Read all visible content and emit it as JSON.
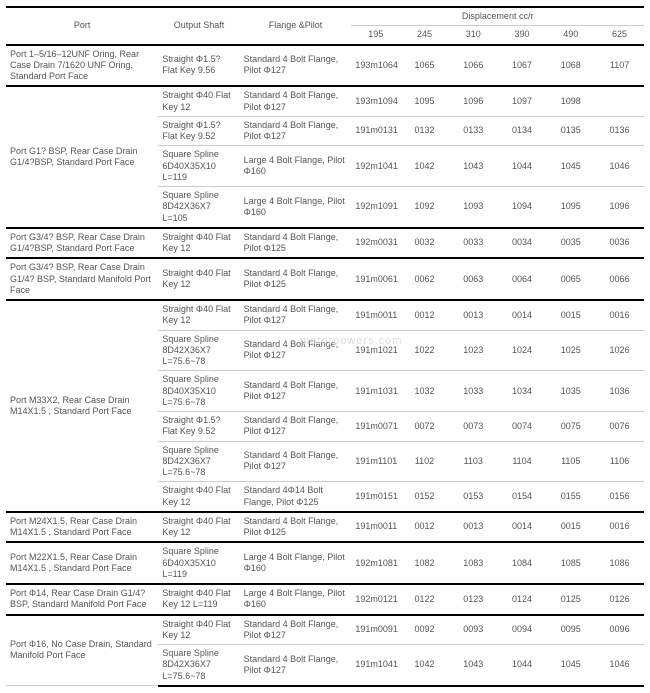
{
  "header": {
    "port": "Port",
    "shaft": "Output\nShaft",
    "flange": "Flange\n&Pilot",
    "disp_title": "Displacement cc/r",
    "disp_cols": [
      "195",
      "245",
      "310",
      "390",
      "490",
      "625"
    ]
  },
  "watermark": "motorpowers.com",
  "sections": [
    {
      "port": "Port 1–5/16–12UNF Oring, Rear Case Drain 7/1620 UNF Oring, Standard Port Face",
      "rows": [
        {
          "shaft": "Straight Φ1.5?\nFlat Key 9.56",
          "flange": "Standard 4 Bolt Flange, Pilot Φ127",
          "d": [
            "193m1064",
            "1065",
            "1066",
            "1067",
            "1068",
            "1107"
          ]
        }
      ]
    },
    {
      "port": "Port G1? BSP, Rear Case Drain G1/4?BSP, Standard Port Face",
      "rows": [
        {
          "shaft": "Straight Φ40\nFlat Key 12",
          "flange": "Standard 4 Bolt Flange, Pilot Φ127",
          "d": [
            "193m1094",
            "1095",
            "1096",
            "1097",
            "1098",
            ""
          ]
        },
        {
          "shaft": "Straight Φ1.5?\nFlat Key 9.52",
          "flange": "Standard 4 Bolt Flange, Pilot Φ127",
          "d": [
            "191m0131",
            "0132",
            "0133",
            "0134",
            "0135",
            "0136"
          ]
        },
        {
          "shaft": "Square Spline 6D40X35X10 L=119",
          "flange": "Large 4 Bolt Flange, Pilot Φ160",
          "d": [
            "192m1041",
            "1042",
            "1043",
            "1044",
            "1045",
            "1046"
          ]
        },
        {
          "shaft": "Square Spline 8D42X36X7 L=105",
          "flange": "Large 4 Bolt Flange, Pilot Φ160",
          "d": [
            "192m1091",
            "1092",
            "1093",
            "1094",
            "1095",
            "1096"
          ]
        }
      ]
    },
    {
      "port": "Port G3/4? BSP, Rear Case Drain G1/4?BSP, Standard Port Face",
      "rows": [
        {
          "shaft": "Straight Φ40\nFlat Key 12",
          "flange": "Standard 4 Bolt Flange, Pilot Φ125",
          "d": [
            "192m0031",
            "0032",
            "0033",
            "0034",
            "0035",
            "0036"
          ]
        }
      ]
    },
    {
      "port": "Port G3/4? BSP, Rear Case Drain G1/4? BSP, Standard Manifold Port Face",
      "rows": [
        {
          "shaft": "Straight Φ40\nFlat Key 12",
          "flange": "Standard 4 Bolt Flange, Pilot Φ125",
          "d": [
            "191m0061",
            "0062",
            "0063",
            "0064",
            "0065",
            "0066"
          ]
        }
      ]
    },
    {
      "port": "Port M33X2, Rear Case Drain M14X1.5 , Standard Port Face",
      "rows": [
        {
          "shaft": "Straight Φ40\nFlat Key 12",
          "flange": "Standard 4 Bolt Flange, Pilot Φ127",
          "d": [
            "191m0011",
            "0012",
            "0013",
            "0014",
            "0015",
            "0016"
          ]
        },
        {
          "shaft": "Square Spline 8D42X36X7 L=75.6~78",
          "flange": "Standard 4 Bolt Flange, Pilot Φ127",
          "d": [
            "191m1021",
            "1022",
            "1023",
            "1024",
            "1025",
            "1026"
          ]
        },
        {
          "shaft": "Square Spline 8D40X35X10 L=75.6~78",
          "flange": "Standard 4 Bolt Flange, Pilot Φ127",
          "d": [
            "191m1031",
            "1032",
            "1033",
            "1034",
            "1035",
            "1036"
          ]
        },
        {
          "shaft": "Straight Φ1.5?\nFlat Key 9.52",
          "flange": "Standard 4 Bolt Flange, Pilot Φ127",
          "d": [
            "191m0071",
            "0072",
            "0073",
            "0074",
            "0075",
            "0076"
          ]
        },
        {
          "shaft": "Square Spline 8D42X36X7 L=75.6~78",
          "flange": "Standard 4 Bolt Flange, Pilot Φ127",
          "d": [
            "191m1101",
            "1102",
            "1103",
            "1104",
            "1105",
            "1106"
          ]
        },
        {
          "shaft": "Straight Φ40\nFlat Key 12",
          "flange": "Standard 4Φ14 Bolt Flange, Pilot Φ125",
          "d": [
            "191m0151",
            "0152",
            "0153",
            "0154",
            "0155",
            "0156"
          ]
        }
      ]
    },
    {
      "port": "Port M24X1.5, Rear Case Drain M14X1.5 , Standard Port Face",
      "rows": [
        {
          "shaft": "Straight Φ40\nFlat Key 12",
          "flange": "Standard 4 Bolt Flange, Pilot Φ125",
          "d": [
            "191m0011",
            "0012",
            "0013",
            "0014",
            "0015",
            "0016"
          ]
        }
      ]
    },
    {
      "port": "Port M22X1.5, Rear Case Drain M14X1.5 , Standard Port Face",
      "rows": [
        {
          "shaft": "Square Spline 6D40X35X10 L=119",
          "flange": "Large 4 Bolt Flange, Pilot Φ160",
          "d": [
            "192m1081",
            "1082",
            "1083",
            "1084",
            "1085",
            "1086"
          ]
        }
      ]
    },
    {
      "port": "Port Φ14, Rear Case Drain G1/4? BSP, Standard Manifold Port Face",
      "rows": [
        {
          "shaft": "Straight Φ40\nFlat Key 12\nL=119",
          "flange": "Large 4 Bolt Flange, Pilot Φ160",
          "d": [
            "192m0121",
            "0122",
            "0123",
            "0124",
            "0125",
            "0126"
          ]
        }
      ]
    },
    {
      "port": "Port  Φ16, No Case Drain, Standard Manifold Port Face",
      "rows": [
        {
          "shaft": "Straight Φ40\nFlat Key 12",
          "flange": "Standard 4 Bolt Flange, Pilot Φ127",
          "d": [
            "191m0091",
            "0092",
            "0093",
            "0094",
            "0095",
            "0096"
          ]
        },
        {
          "shaft": "Square Spline 8D42X36X7 L=75.6~78",
          "flange": "Standard 4 Bolt Flange, Pilot Φ127",
          "d": [
            "191m1041",
            "1042",
            "1043",
            "1044",
            "1045",
            "1046"
          ]
        }
      ]
    }
  ]
}
